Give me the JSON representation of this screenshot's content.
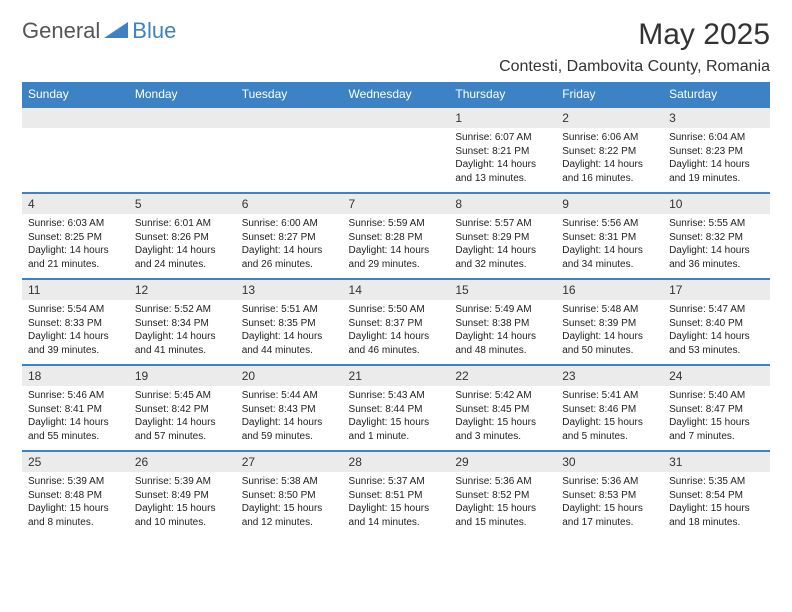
{
  "brand": {
    "general": "General",
    "blue": "Blue"
  },
  "title": "May 2025",
  "location": "Contesti, Dambovita County, Romania",
  "colors": {
    "header_bg": "#3d82c4",
    "header_text": "#ffffff",
    "daynum_bg": "#ebebeb",
    "border": "#3d82c4",
    "page_bg": "#ffffff",
    "text": "#222222",
    "logo_gray": "#555555",
    "logo_blue": "#3d82c4"
  },
  "weekdays": [
    "Sunday",
    "Monday",
    "Tuesday",
    "Wednesday",
    "Thursday",
    "Friday",
    "Saturday"
  ],
  "weeks": [
    [
      null,
      null,
      null,
      null,
      {
        "n": "1",
        "sr": "6:07 AM",
        "ss": "8:21 PM",
        "dl": "14 hours and 13 minutes."
      },
      {
        "n": "2",
        "sr": "6:06 AM",
        "ss": "8:22 PM",
        "dl": "14 hours and 16 minutes."
      },
      {
        "n": "3",
        "sr": "6:04 AM",
        "ss": "8:23 PM",
        "dl": "14 hours and 19 minutes."
      }
    ],
    [
      {
        "n": "4",
        "sr": "6:03 AM",
        "ss": "8:25 PM",
        "dl": "14 hours and 21 minutes."
      },
      {
        "n": "5",
        "sr": "6:01 AM",
        "ss": "8:26 PM",
        "dl": "14 hours and 24 minutes."
      },
      {
        "n": "6",
        "sr": "6:00 AM",
        "ss": "8:27 PM",
        "dl": "14 hours and 26 minutes."
      },
      {
        "n": "7",
        "sr": "5:59 AM",
        "ss": "8:28 PM",
        "dl": "14 hours and 29 minutes."
      },
      {
        "n": "8",
        "sr": "5:57 AM",
        "ss": "8:29 PM",
        "dl": "14 hours and 32 minutes."
      },
      {
        "n": "9",
        "sr": "5:56 AM",
        "ss": "8:31 PM",
        "dl": "14 hours and 34 minutes."
      },
      {
        "n": "10",
        "sr": "5:55 AM",
        "ss": "8:32 PM",
        "dl": "14 hours and 36 minutes."
      }
    ],
    [
      {
        "n": "11",
        "sr": "5:54 AM",
        "ss": "8:33 PM",
        "dl": "14 hours and 39 minutes."
      },
      {
        "n": "12",
        "sr": "5:52 AM",
        "ss": "8:34 PM",
        "dl": "14 hours and 41 minutes."
      },
      {
        "n": "13",
        "sr": "5:51 AM",
        "ss": "8:35 PM",
        "dl": "14 hours and 44 minutes."
      },
      {
        "n": "14",
        "sr": "5:50 AM",
        "ss": "8:37 PM",
        "dl": "14 hours and 46 minutes."
      },
      {
        "n": "15",
        "sr": "5:49 AM",
        "ss": "8:38 PM",
        "dl": "14 hours and 48 minutes."
      },
      {
        "n": "16",
        "sr": "5:48 AM",
        "ss": "8:39 PM",
        "dl": "14 hours and 50 minutes."
      },
      {
        "n": "17",
        "sr": "5:47 AM",
        "ss": "8:40 PM",
        "dl": "14 hours and 53 minutes."
      }
    ],
    [
      {
        "n": "18",
        "sr": "5:46 AM",
        "ss": "8:41 PM",
        "dl": "14 hours and 55 minutes."
      },
      {
        "n": "19",
        "sr": "5:45 AM",
        "ss": "8:42 PM",
        "dl": "14 hours and 57 minutes."
      },
      {
        "n": "20",
        "sr": "5:44 AM",
        "ss": "8:43 PM",
        "dl": "14 hours and 59 minutes."
      },
      {
        "n": "21",
        "sr": "5:43 AM",
        "ss": "8:44 PM",
        "dl": "15 hours and 1 minute."
      },
      {
        "n": "22",
        "sr": "5:42 AM",
        "ss": "8:45 PM",
        "dl": "15 hours and 3 minutes."
      },
      {
        "n": "23",
        "sr": "5:41 AM",
        "ss": "8:46 PM",
        "dl": "15 hours and 5 minutes."
      },
      {
        "n": "24",
        "sr": "5:40 AM",
        "ss": "8:47 PM",
        "dl": "15 hours and 7 minutes."
      }
    ],
    [
      {
        "n": "25",
        "sr": "5:39 AM",
        "ss": "8:48 PM",
        "dl": "15 hours and 8 minutes."
      },
      {
        "n": "26",
        "sr": "5:39 AM",
        "ss": "8:49 PM",
        "dl": "15 hours and 10 minutes."
      },
      {
        "n": "27",
        "sr": "5:38 AM",
        "ss": "8:50 PM",
        "dl": "15 hours and 12 minutes."
      },
      {
        "n": "28",
        "sr": "5:37 AM",
        "ss": "8:51 PM",
        "dl": "15 hours and 14 minutes."
      },
      {
        "n": "29",
        "sr": "5:36 AM",
        "ss": "8:52 PM",
        "dl": "15 hours and 15 minutes."
      },
      {
        "n": "30",
        "sr": "5:36 AM",
        "ss": "8:53 PM",
        "dl": "15 hours and 17 minutes."
      },
      {
        "n": "31",
        "sr": "5:35 AM",
        "ss": "8:54 PM",
        "dl": "15 hours and 18 minutes."
      }
    ]
  ],
  "labels": {
    "sunrise": "Sunrise: ",
    "sunset": "Sunset: ",
    "daylight": "Daylight: "
  }
}
